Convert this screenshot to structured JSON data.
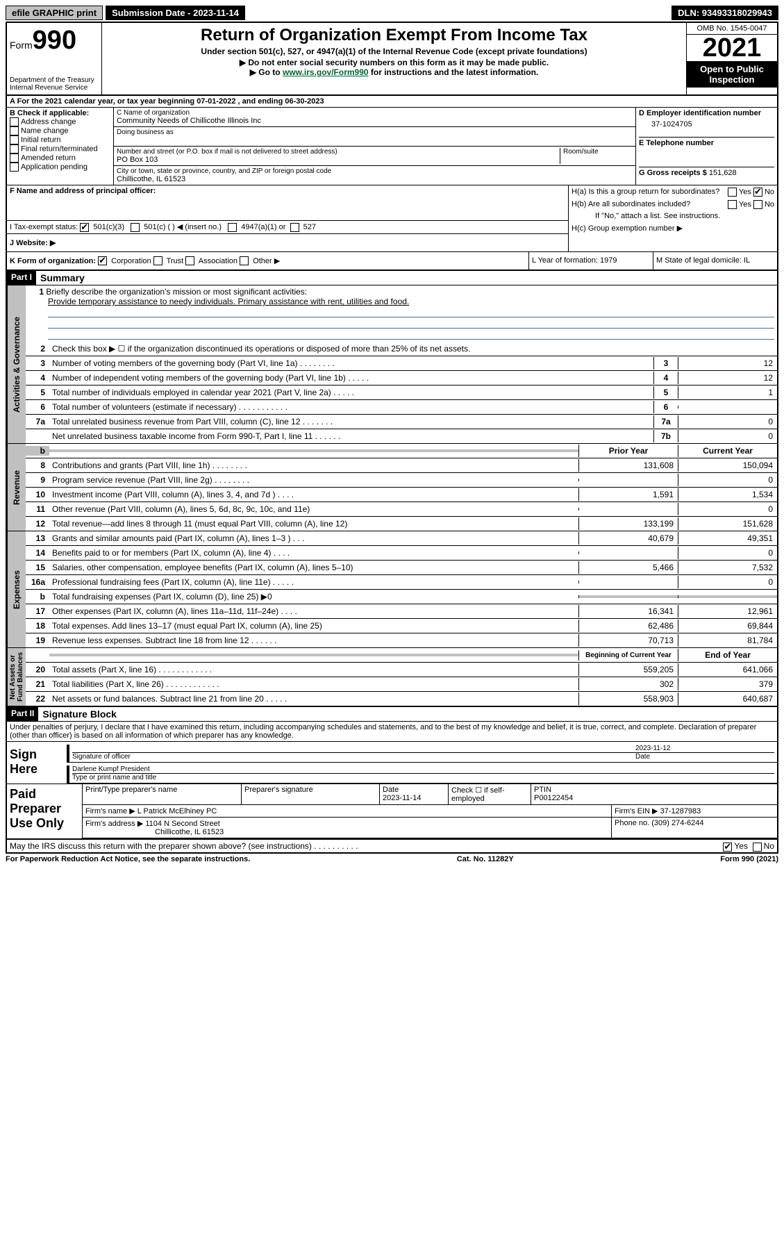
{
  "topbar": {
    "efile": "efile GRAPHIC print",
    "sub_label": "Submission Date - 2023-11-14",
    "dln": "DLN: 93493318029943"
  },
  "header": {
    "form_label": "Form",
    "form_num": "990",
    "dept": "Department of the Treasury",
    "irs": "Internal Revenue Service",
    "title": "Return of Organization Exempt From Income Tax",
    "sub1": "Under section 501(c), 527, or 4947(a)(1) of the Internal Revenue Code (except private foundations)",
    "sub2": "▶ Do not enter social security numbers on this form as it may be made public.",
    "sub3_pre": "▶ Go to ",
    "sub3_link": "www.irs.gov/Form990",
    "sub3_post": " for instructions and the latest information.",
    "omb": "OMB No. 1545-0047",
    "year": "2021",
    "open": "Open to Public Inspection"
  },
  "rowA": "A For the 2021 calendar year, or tax year beginning 07-01-2022    , and ending 06-30-2023",
  "colB": {
    "title": "B Check if applicable:",
    "items": [
      "Address change",
      "Name change",
      "Initial return",
      "Final return/terminated",
      "Amended return",
      "Application pending"
    ]
  },
  "colC": {
    "name_label": "C Name of organization",
    "name": "Community Needs of Chillicothe Illinois Inc",
    "dba_label": "Doing business as",
    "addr_label": "Number and street (or P.O. box if mail is not delivered to street address)",
    "room_label": "Room/suite",
    "addr": "PO Box 103",
    "city_label": "City or town, state or province, country, and ZIP or foreign postal code",
    "city": "Chillicothe, IL  61523"
  },
  "colD": {
    "ein_label": "D Employer identification number",
    "ein": "37-1024705",
    "phone_label": "E Telephone number",
    "gross_label": "G Gross receipts $",
    "gross": "151,628"
  },
  "rowF": {
    "label": "F  Name and address of principal officer:"
  },
  "rowH": {
    "ha": "H(a)  Is this a group return for subordinates?",
    "hb": "H(b)  Are all subordinates included?",
    "hb_note": "If \"No,\" attach a list. See instructions.",
    "hc": "H(c)  Group exemption number ▶"
  },
  "rowI": {
    "label": "I   Tax-exempt status:",
    "opt1": "501(c)(3)",
    "opt2": "501(c) (   ) ◀ (insert no.)",
    "opt3": "4947(a)(1) or",
    "opt4": "527"
  },
  "rowJ": "J   Website: ▶",
  "rowK": {
    "label": "K Form of organization:",
    "opts": [
      "Corporation",
      "Trust",
      "Association",
      "Other ▶"
    ]
  },
  "rowL": "L Year of formation: 1979",
  "rowM": "M State of legal domicile: IL",
  "part1": {
    "header": "Part I",
    "title": "Summary",
    "line1_label": "1",
    "line1a": "Briefly describe the organization's mission or most significant activities:",
    "line1b": "Provide temporary assistance to needy individuals. Primary assistance with rent, utilities and food.",
    "line2": "Check this box ▶ ☐  if the organization discontinued its operations or disposed of more than 25% of its net assets.",
    "lines_gov": [
      {
        "n": "3",
        "t": "Number of voting members of the governing body (Part VI, line 1a)   .   .   .   .   .   .   .   .",
        "b": "3",
        "v": "12"
      },
      {
        "n": "4",
        "t": "Number of independent voting members of the governing body (Part VI, line 1b)  .   .   .   .   .",
        "b": "4",
        "v": "12"
      },
      {
        "n": "5",
        "t": "Total number of individuals employed in calendar year 2021 (Part V, line 2a)   .   .   .   .   .",
        "b": "5",
        "v": "1"
      },
      {
        "n": "6",
        "t": "Total number of volunteers (estimate if necessary)  .   .   .   .   .   .   .   .   .   .   .",
        "b": "6",
        "v": ""
      },
      {
        "n": "7a",
        "t": "Total unrelated business revenue from Part VIII, column (C), line 12  .   .   .   .   .   .   .",
        "b": "7a",
        "v": "0"
      },
      {
        "n": "",
        "t": "Net unrelated business taxable income from Form 990-T, Part I, line 11  .   .   .   .   .   .",
        "b": "7b",
        "v": "0"
      }
    ],
    "hdr_prior": "Prior Year",
    "hdr_current": "Current Year",
    "lines_rev": [
      {
        "n": "8",
        "t": "Contributions and grants (Part VIII, line 1h)   .   .   .   .   .   .   .   .",
        "p": "131,608",
        "c": "150,094"
      },
      {
        "n": "9",
        "t": "Program service revenue (Part VIII, line 2g)  .   .   .   .   .   .   .   .",
        "p": "",
        "c": "0"
      },
      {
        "n": "10",
        "t": "Investment income (Part VIII, column (A), lines 3, 4, and 7d )   .   .   .   .",
        "p": "1,591",
        "c": "1,534"
      },
      {
        "n": "11",
        "t": "Other revenue (Part VIII, column (A), lines 5, 6d, 8c, 9c, 10c, and 11e)",
        "p": "",
        "c": "0"
      },
      {
        "n": "12",
        "t": "Total revenue—add lines 8 through 11 (must equal Part VIII, column (A), line 12)",
        "p": "133,199",
        "c": "151,628"
      }
    ],
    "lines_exp": [
      {
        "n": "13",
        "t": "Grants and similar amounts paid (Part IX, column (A), lines 1–3 )   .   .   .",
        "p": "40,679",
        "c": "49,351"
      },
      {
        "n": "14",
        "t": "Benefits paid to or for members (Part IX, column (A), line 4)   .   .   .   .",
        "p": "",
        "c": "0"
      },
      {
        "n": "15",
        "t": "Salaries, other compensation, employee benefits (Part IX, column (A), lines 5–10)",
        "p": "5,466",
        "c": "7,532"
      },
      {
        "n": "16a",
        "t": "Professional fundraising fees (Part IX, column (A), line 11e)  .   .   .   .   .",
        "p": "",
        "c": "0"
      },
      {
        "n": "b",
        "t": "Total fundraising expenses (Part IX, column (D), line 25) ▶0",
        "p": "__gray__",
        "c": "__gray__"
      },
      {
        "n": "17",
        "t": "Other expenses (Part IX, column (A), lines 11a–11d, 11f–24e)  .   .   .   .",
        "p": "16,341",
        "c": "12,961"
      },
      {
        "n": "18",
        "t": "Total expenses. Add lines 13–17 (must equal Part IX, column (A), line 25)",
        "p": "62,486",
        "c": "69,844"
      },
      {
        "n": "19",
        "t": "Revenue less expenses. Subtract line 18 from line 12  .   .   .   .   .   .",
        "p": "70,713",
        "c": "81,784"
      }
    ],
    "hdr_boy": "Beginning of Current Year",
    "hdr_eoy": "End of Year",
    "lines_net": [
      {
        "n": "20",
        "t": "Total assets (Part X, line 16)  .   .   .   .   .   .   .   .   .   .   .   .",
        "p": "559,205",
        "c": "641,066"
      },
      {
        "n": "21",
        "t": "Total liabilities (Part X, line 26)  .   .   .   .   .   .   .   .   .   .   .   .",
        "p": "302",
        "c": "379"
      },
      {
        "n": "22",
        "t": "Net assets or fund balances. Subtract line 21 from line 20  .   .   .   .   .",
        "p": "558,903",
        "c": "640,687"
      }
    ]
  },
  "part2": {
    "header": "Part II",
    "title": "Signature Block",
    "penalty": "Under penalties of perjury, I declare that I have examined this return, including accompanying schedules and statements, and to the best of my knowledge and belief, it is true, correct, and complete. Declaration of preparer (other than officer) is based on all information of which preparer has any knowledge.",
    "sign_here": "Sign Here",
    "sig_officer": "Signature of officer",
    "sig_date": "Date",
    "sig_date_val": "2023-11-12",
    "name_title": "Darlene Kumpf  President",
    "name_title_label": "Type or print name and title",
    "paid": "Paid Preparer Use Only",
    "prep_name_label": "Print/Type preparer's name",
    "prep_sig_label": "Preparer's signature",
    "prep_date_label": "Date",
    "prep_date": "2023-11-14",
    "prep_check": "Check ☐ if self-employed",
    "ptin_label": "PTIN",
    "ptin": "P00122454",
    "firm_name_label": "Firm's name    ▶",
    "firm_name": "L Patrick McElhiney PC",
    "firm_ein_label": "Firm's EIN ▶",
    "firm_ein": "37-1287983",
    "firm_addr_label": "Firm's address ▶",
    "firm_addr1": "1104 N Second Street",
    "firm_addr2": "Chillicothe, IL  61523",
    "firm_phone_label": "Phone no.",
    "firm_phone": "(309) 274-6244",
    "discuss": "May the IRS discuss this return with the preparer shown above? (see instructions)   .   .   .   .   .   .   .   .   .   .",
    "yes": "Yes",
    "no": "No"
  },
  "footer": {
    "left": "For Paperwork Reduction Act Notice, see the separate instructions.",
    "mid": "Cat. No. 11282Y",
    "right": "Form 990 (2021)"
  }
}
